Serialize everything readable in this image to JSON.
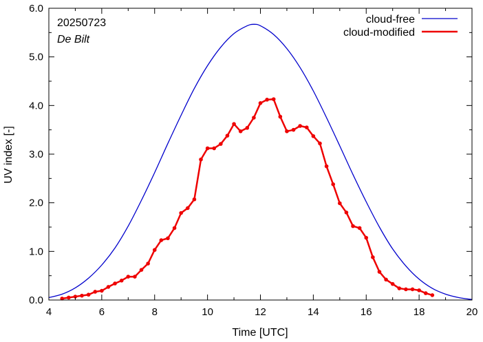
{
  "chart_data": {
    "type": "line",
    "xlabel": "Time  [UTC]",
    "ylabel": "UV index  [-]",
    "xlim": [
      4,
      20
    ],
    "ylim": [
      0,
      6
    ],
    "xticks": [
      4,
      6,
      8,
      10,
      12,
      14,
      16,
      18,
      20
    ],
    "xtick_labels": [
      "4",
      "6",
      "8",
      "10",
      "12",
      "14",
      "16",
      "18",
      "20"
    ],
    "yticks": [
      0,
      1,
      2,
      3,
      4,
      5,
      6
    ],
    "ytick_labels": [
      "0.0",
      "1.0",
      "2.0",
      "3.0",
      "4.0",
      "5.0",
      "6.0"
    ],
    "grid": false,
    "legend_position": "top-right",
    "annotations": {
      "date": "20250723",
      "location": "De Bilt"
    },
    "series": [
      {
        "name": "cloud-free",
        "color": "#0000cc",
        "markers": false,
        "x": [
          4.0,
          4.5,
          5.0,
          5.5,
          6.0,
          6.5,
          7.0,
          7.5,
          8.0,
          8.5,
          9.0,
          9.5,
          10.0,
          10.5,
          11.0,
          11.5,
          11.75,
          12.0,
          12.5,
          13.0,
          13.5,
          14.0,
          14.5,
          15.0,
          15.5,
          16.0,
          16.5,
          17.0,
          17.5,
          18.0,
          18.5,
          19.0,
          19.5,
          20.0
        ],
        "y": [
          0.05,
          0.12,
          0.25,
          0.45,
          0.72,
          1.07,
          1.52,
          2.05,
          2.62,
          3.22,
          3.8,
          4.35,
          4.82,
          5.2,
          5.48,
          5.64,
          5.67,
          5.64,
          5.46,
          5.17,
          4.78,
          4.3,
          3.75,
          3.17,
          2.58,
          2.02,
          1.5,
          1.05,
          0.7,
          0.43,
          0.24,
          0.12,
          0.05,
          0.01
        ]
      },
      {
        "name": "cloud-modified",
        "color": "#ee0000",
        "markers": true,
        "x": [
          4.5,
          4.75,
          5.0,
          5.25,
          5.5,
          5.75,
          6.0,
          6.25,
          6.5,
          6.75,
          7.0,
          7.25,
          7.5,
          7.75,
          8.0,
          8.25,
          8.5,
          8.75,
          9.0,
          9.25,
          9.5,
          9.75,
          10.0,
          10.25,
          10.5,
          10.75,
          11.0,
          11.25,
          11.5,
          11.75,
          12.0,
          12.25,
          12.5,
          12.75,
          13.0,
          13.25,
          13.5,
          13.75,
          14.0,
          14.25,
          14.5,
          14.75,
          15.0,
          15.25,
          15.5,
          15.75,
          16.0,
          16.25,
          16.5,
          16.75,
          17.0,
          17.25,
          17.5,
          17.75,
          18.0,
          18.25,
          18.5
        ],
        "y": [
          0.03,
          0.05,
          0.07,
          0.09,
          0.11,
          0.17,
          0.19,
          0.27,
          0.34,
          0.4,
          0.48,
          0.48,
          0.62,
          0.75,
          1.03,
          1.23,
          1.27,
          1.48,
          1.79,
          1.89,
          2.07,
          2.89,
          3.12,
          3.12,
          3.21,
          3.38,
          3.62,
          3.47,
          3.54,
          3.75,
          4.05,
          4.12,
          4.13,
          3.77,
          3.47,
          3.5,
          3.58,
          3.55,
          3.37,
          3.22,
          2.75,
          2.38,
          1.99,
          1.8,
          1.52,
          1.48,
          1.28,
          0.88,
          0.58,
          0.42,
          0.33,
          0.24,
          0.22,
          0.22,
          0.2,
          0.14,
          0.1
        ]
      }
    ]
  }
}
